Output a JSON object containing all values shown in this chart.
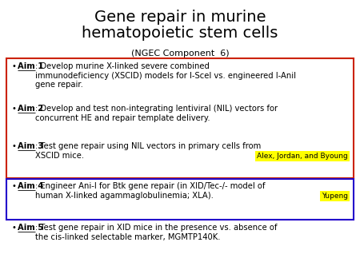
{
  "title_line1": "Gene repair in murine",
  "title_line2": "hematopoietic stem cells",
  "subtitle": "(NGEC Component  6)",
  "title_fontsize": 14,
  "subtitle_fontsize": 8,
  "bg_color": "#ffffff",
  "aims": [
    {
      "label": "Aim 1",
      "text_after_label": ": Develop murine X-linked severe combined\nimmunodeficiency (XSCID) models for I-SceI vs. engineered I-AniI\ngene repair.",
      "box": "red"
    },
    {
      "label": "Aim 2",
      "text_after_label": ": Develop and test non-integrating lentiviral (NIL) vectors for\nconcurrent HE and repair template delivery.",
      "box": "red"
    },
    {
      "label": "Aim 3",
      "text_after_label": ": Test gene repair using NIL vectors in primary cells from\nXSCID mice.",
      "italic_word": "XSCID",
      "box": "red",
      "tag": "Alex, Jordan, and Byoung",
      "tag_color": "#ffff00"
    },
    {
      "label": "Aim 4",
      "text_after_label": ": Engineer Ani-I for Btk gene repair (in XID/Tec-/- model of\nhuman X-linked agammaglobulinemia; XLA).",
      "box": "blue",
      "tag": "Yupeng",
      "tag_color": "#ffff00"
    },
    {
      "label": "Aim 5",
      "text_after_label": ": Test gene repair in XID mice in the presence vs. absence of\nthe cis-linked selectable marker, MGMTP140K.",
      "box": "none"
    }
  ],
  "red_box_color": "#cc2200",
  "blue_box_color": "#2200cc",
  "text_color": "#000000",
  "body_fontsize": 7.2,
  "label_fontsize": 7.2
}
